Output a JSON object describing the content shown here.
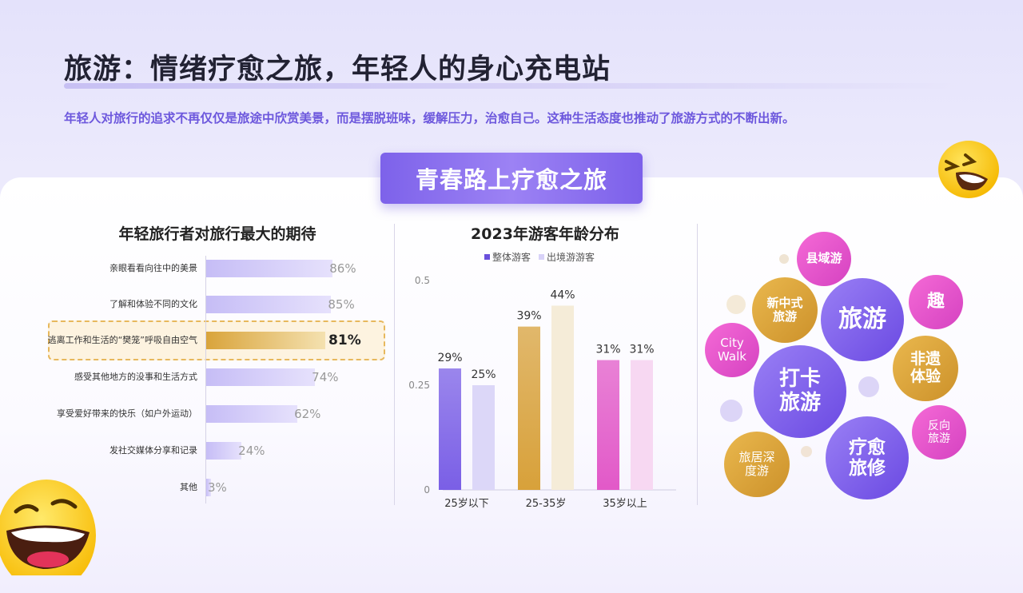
{
  "header": {
    "title": "旅游：情绪疗愈之旅，年轻人的身心充电站",
    "subtitle": "年轻人对旅行的追求不再仅仅是旅途中欣赏美景，而是摆脱班味，缓解压力，治愈自己。这种生活态度也推动了旅游方式的不断出新。"
  },
  "badge": {
    "label": "青春路上疗愈之旅"
  },
  "chart_data": [
    {
      "type": "bar",
      "orientation": "horizontal",
      "title": "年轻旅行者对旅行最大的期待",
      "categories": [
        "亲眼看看向往中的美景",
        "了解和体验不同的文化",
        "逃离工作和生活的“樊笼”呼吸自由空气",
        "感受其他地方的没事和生活方式",
        "享受爱好带来的快乐（如户外运动）",
        "发社交媒体分享和记录",
        "其他"
      ],
      "values": [
        86,
        85,
        81,
        74,
        62,
        24,
        3
      ],
      "value_labels": [
        "86%",
        "85%",
        "81%",
        "74%",
        "62%",
        "24%",
        "3%"
      ],
      "highlight_index": 2,
      "colors": {
        "bar": "#c6bdf6",
        "highlight": "#d9a43b"
      }
    },
    {
      "type": "bar",
      "title": "2023年游客年龄分布",
      "categories": [
        "25岁以下",
        "25-35岁",
        "35岁以上"
      ],
      "series": [
        {
          "name": "整体游客",
          "values": [
            0.29,
            0.39,
            0.31
          ],
          "labels": [
            "29%",
            "39%",
            "31%"
          ]
        },
        {
          "name": "出境游游客",
          "values": [
            0.25,
            0.44,
            0.31
          ],
          "labels": [
            "25%",
            "44%",
            "31%"
          ]
        }
      ],
      "ylim": [
        0,
        0.5
      ],
      "yticks": [
        "0",
        "0.25",
        "0.5"
      ],
      "legend_position": "top",
      "colors": {
        "legend": [
          "#6a50dc",
          "#d8d2f8"
        ],
        "group_colors": [
          [
            "#7a5fe6",
            "#dcd7f8"
          ],
          [
            "#d8a13a",
            "#f5ecd8"
          ],
          [
            "#e259c8",
            "#f7d8f2"
          ]
        ]
      }
    }
  ],
  "bubbles": {
    "county": "县域游",
    "new_chinese": [
      "新中式",
      "旅游"
    ],
    "travel": "旅游",
    "fun": "趣",
    "city_walk": [
      "City",
      "Walk"
    ],
    "checkin": [
      "打卡",
      "旅游"
    ],
    "heritage": [
      "非遗",
      "体验"
    ],
    "reverse": [
      "反向",
      "旅游"
    ],
    "sojourn": [
      "旅居深",
      "度游"
    ],
    "healing": [
      "疗愈",
      "旅修"
    ]
  },
  "decor": {
    "emoji_icon": "laughing-emoji-icon"
  }
}
